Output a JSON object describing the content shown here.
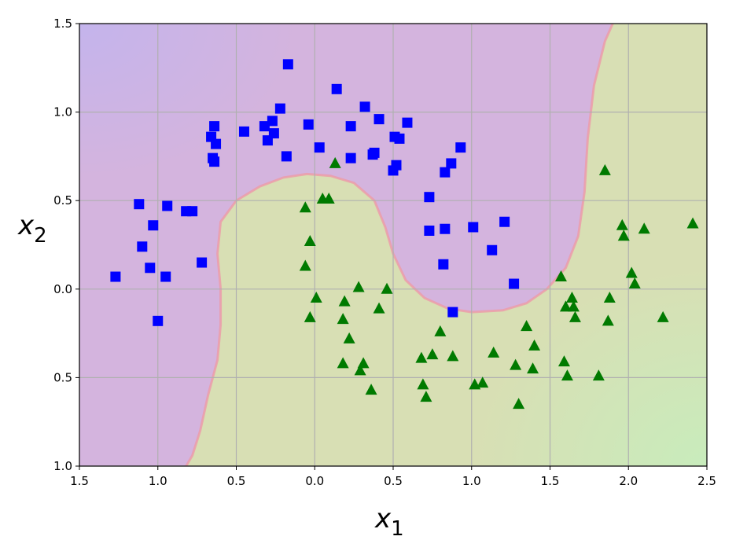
{
  "chart_data": {
    "type": "scatter",
    "title": "",
    "xlabel": "x",
    "xlabel_sub": "1",
    "ylabel": "x",
    "ylabel_sub": "2",
    "xlim": [
      -1.5,
      2.5
    ],
    "ylim": [
      -1.0,
      1.5
    ],
    "grid": true,
    "x_ticks": [
      -1.5,
      -1.0,
      -0.5,
      0.0,
      0.5,
      1.0,
      1.5,
      2.0,
      2.5
    ],
    "y_ticks": [
      -1.0,
      -0.5,
      0.0,
      0.5,
      1.0,
      1.5
    ],
    "x_tick_labels": [
      "1.5",
      "1.0",
      "0.5",
      "0.0",
      "0.5",
      "1.0",
      "1.5",
      "2.0",
      "2.5"
    ],
    "y_tick_labels": [
      "1.0",
      "0.5",
      "0.0",
      "0.5",
      "1.0",
      "1.5"
    ],
    "colors": {
      "class0_marker": "#0000ff",
      "class1_marker": "#007a00",
      "region_class0": "#d4b4de",
      "region_class1": "#d8dfb4",
      "region_class0_far": "#c4b4ec",
      "region_class1_far": "#c8ecbc",
      "boundary": "#ee9aa8",
      "grid": "#b0b0b0"
    },
    "decision_boundary": [
      [
        -0.82,
        -1.0
      ],
      [
        -0.78,
        -0.94
      ],
      [
        -0.73,
        -0.8
      ],
      [
        -0.68,
        -0.6
      ],
      [
        -0.62,
        -0.4
      ],
      [
        -0.6,
        -0.2
      ],
      [
        -0.6,
        0.0
      ],
      [
        -0.62,
        0.2
      ],
      [
        -0.6,
        0.38
      ],
      [
        -0.5,
        0.5
      ],
      [
        -0.35,
        0.58
      ],
      [
        -0.2,
        0.63
      ],
      [
        -0.05,
        0.65
      ],
      [
        0.1,
        0.64
      ],
      [
        0.25,
        0.6
      ],
      [
        0.38,
        0.5
      ],
      [
        0.45,
        0.35
      ],
      [
        0.5,
        0.2
      ],
      [
        0.58,
        0.05
      ],
      [
        0.7,
        -0.05
      ],
      [
        0.85,
        -0.11
      ],
      [
        1.0,
        -0.13
      ],
      [
        1.2,
        -0.12
      ],
      [
        1.35,
        -0.08
      ],
      [
        1.48,
        0.0
      ],
      [
        1.6,
        0.12
      ],
      [
        1.68,
        0.3
      ],
      [
        1.72,
        0.55
      ],
      [
        1.74,
        0.85
      ],
      [
        1.78,
        1.15
      ],
      [
        1.85,
        1.4
      ],
      [
        1.9,
        1.5
      ]
    ],
    "series": [
      {
        "marker": "square",
        "color": "#0000ff",
        "points": [
          [
            -1.27,
            0.07
          ],
          [
            -1.12,
            0.48
          ],
          [
            -1.1,
            0.24
          ],
          [
            -1.05,
            0.12
          ],
          [
            -1.03,
            0.36
          ],
          [
            -1.0,
            -0.18
          ],
          [
            -0.95,
            0.07
          ],
          [
            -0.94,
            0.47
          ],
          [
            -0.82,
            0.44
          ],
          [
            -0.78,
            0.44
          ],
          [
            -0.72,
            0.15
          ],
          [
            -0.66,
            0.86
          ],
          [
            -0.65,
            0.74
          ],
          [
            -0.64,
            0.72
          ],
          [
            -0.64,
            0.92
          ],
          [
            -0.63,
            0.82
          ],
          [
            -0.45,
            0.89
          ],
          [
            -0.32,
            0.92
          ],
          [
            -0.3,
            0.84
          ],
          [
            -0.27,
            0.95
          ],
          [
            -0.26,
            0.88
          ],
          [
            -0.22,
            1.02
          ],
          [
            -0.18,
            0.75
          ],
          [
            -0.17,
            1.27
          ],
          [
            -0.04,
            0.93
          ],
          [
            0.03,
            0.8
          ],
          [
            0.14,
            1.13
          ],
          [
            0.23,
            0.74
          ],
          [
            0.23,
            0.92
          ],
          [
            0.32,
            1.03
          ],
          [
            0.37,
            0.76
          ],
          [
            0.38,
            0.77
          ],
          [
            0.41,
            0.96
          ],
          [
            0.5,
            0.67
          ],
          [
            0.51,
            0.86
          ],
          [
            0.52,
            0.7
          ],
          [
            0.54,
            0.85
          ],
          [
            0.59,
            0.94
          ],
          [
            0.73,
            0.52
          ],
          [
            0.73,
            0.33
          ],
          [
            0.82,
            0.14
          ],
          [
            0.83,
            0.66
          ],
          [
            0.83,
            0.34
          ],
          [
            0.87,
            0.71
          ],
          [
            0.88,
            -0.13
          ],
          [
            0.93,
            0.8
          ],
          [
            1.01,
            0.35
          ],
          [
            1.13,
            0.22
          ],
          [
            1.21,
            0.38
          ],
          [
            1.27,
            0.03
          ]
        ]
      },
      {
        "marker": "triangle",
        "color": "#007a00",
        "points": [
          [
            -0.06,
            0.13
          ],
          [
            -0.06,
            0.46
          ],
          [
            -0.03,
            0.27
          ],
          [
            -0.03,
            -0.16
          ],
          [
            0.01,
            -0.05
          ],
          [
            0.05,
            0.51
          ],
          [
            0.09,
            0.51
          ],
          [
            0.13,
            0.71
          ],
          [
            0.18,
            -0.42
          ],
          [
            0.18,
            -0.17
          ],
          [
            0.19,
            -0.07
          ],
          [
            0.22,
            -0.28
          ],
          [
            0.28,
            0.01
          ],
          [
            0.29,
            -0.46
          ],
          [
            0.31,
            -0.42
          ],
          [
            0.36,
            -0.57
          ],
          [
            0.41,
            -0.11
          ],
          [
            0.46,
            0.0
          ],
          [
            0.68,
            -0.39
          ],
          [
            0.69,
            -0.54
          ],
          [
            0.71,
            -0.61
          ],
          [
            0.75,
            -0.37
          ],
          [
            0.8,
            -0.24
          ],
          [
            0.88,
            -0.38
          ],
          [
            1.02,
            -0.54
          ],
          [
            1.07,
            -0.53
          ],
          [
            1.14,
            -0.36
          ],
          [
            1.28,
            -0.43
          ],
          [
            1.3,
            -0.65
          ],
          [
            1.35,
            -0.21
          ],
          [
            1.39,
            -0.45
          ],
          [
            1.4,
            -0.32
          ],
          [
            1.57,
            0.07
          ],
          [
            1.59,
            -0.41
          ],
          [
            1.6,
            -0.1
          ],
          [
            1.61,
            -0.49
          ],
          [
            1.64,
            -0.05
          ],
          [
            1.65,
            -0.1
          ],
          [
            1.66,
            -0.16
          ],
          [
            1.81,
            -0.49
          ],
          [
            1.85,
            0.67
          ],
          [
            1.87,
            -0.18
          ],
          [
            1.88,
            -0.05
          ],
          [
            1.96,
            0.36
          ],
          [
            1.97,
            0.3
          ],
          [
            2.02,
            0.09
          ],
          [
            2.04,
            0.03
          ],
          [
            2.1,
            0.34
          ],
          [
            2.22,
            -0.16
          ],
          [
            2.41,
            0.37
          ]
        ]
      }
    ]
  }
}
